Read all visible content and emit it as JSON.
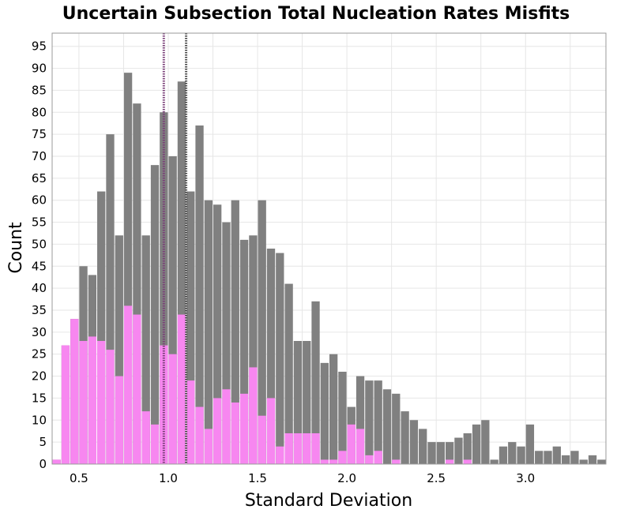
{
  "chart_data": {
    "type": "bar",
    "title": "Uncertain Subsection Total Nucleation Rates Misfits",
    "xlabel": "Standard Deviation",
    "ylabel": "Count",
    "xlim": [
      0.35,
      3.45
    ],
    "ylim": [
      0,
      98
    ],
    "bin_width": 0.05,
    "x_ticks": [
      0.5,
      1.0,
      1.5,
      2.0,
      2.5,
      3.0
    ],
    "x_tick_labels": [
      "0.5",
      "1.0",
      "1.5",
      "2.0",
      "2.5",
      "3.0"
    ],
    "y_ticks": [
      0,
      5,
      10,
      15,
      20,
      25,
      30,
      35,
      40,
      45,
      50,
      55,
      60,
      65,
      70,
      75,
      80,
      85,
      90,
      95
    ],
    "y_tick_labels": [
      "0",
      "5",
      "10",
      "15",
      "20",
      "25",
      "30",
      "35",
      "40",
      "45",
      "50",
      "55",
      "60",
      "65",
      "70",
      "75",
      "80",
      "85",
      "90",
      "95"
    ],
    "grid": true,
    "bin_centers": [
      0.375,
      0.425,
      0.475,
      0.525,
      0.575,
      0.625,
      0.675,
      0.725,
      0.775,
      0.825,
      0.875,
      0.925,
      0.975,
      1.025,
      1.075,
      1.125,
      1.175,
      1.225,
      1.275,
      1.325,
      1.375,
      1.425,
      1.475,
      1.525,
      1.575,
      1.625,
      1.675,
      1.725,
      1.775,
      1.825,
      1.875,
      1.925,
      1.975,
      2.025,
      2.075,
      2.125,
      2.175,
      2.225,
      2.275,
      2.325,
      2.375,
      2.425,
      2.475,
      2.525,
      2.575,
      2.625,
      2.675,
      2.725,
      2.775,
      2.825,
      2.875,
      2.925,
      2.975,
      3.025,
      3.075,
      3.125,
      3.175,
      3.225,
      3.275,
      3.325,
      3.375,
      3.425
    ],
    "series": [
      {
        "color": "#808080",
        "values": [
          1,
          27,
          33,
          45,
          43,
          62,
          75,
          52,
          89,
          82,
          52,
          68,
          80,
          70,
          87,
          62,
          77,
          60,
          59,
          55,
          60,
          51,
          52,
          60,
          49,
          48,
          41,
          28,
          28,
          37,
          23,
          25,
          21,
          13,
          20,
          19,
          19,
          17,
          16,
          12,
          10,
          8,
          5,
          5,
          5,
          6,
          7,
          9,
          10,
          1,
          4,
          5,
          4,
          9,
          3,
          3,
          4,
          2,
          3,
          1,
          2,
          1
        ]
      },
      {
        "color": "#f787f0",
        "values": [
          1,
          27,
          33,
          28,
          29,
          28,
          26,
          20,
          36,
          34,
          12,
          9,
          27,
          25,
          34,
          19,
          13,
          8,
          15,
          17,
          14,
          16,
          22,
          11,
          15,
          4,
          7,
          7,
          7,
          7,
          1,
          1,
          3,
          9,
          8,
          2,
          3,
          0,
          1,
          0,
          0,
          0,
          0,
          0,
          1,
          0,
          1,
          0,
          0,
          0,
          0,
          0,
          0,
          0,
          0,
          0,
          0,
          0,
          0,
          0,
          0,
          0
        ]
      }
    ],
    "reference_lines": [
      {
        "x": 0.975,
        "color": "#7a3f78",
        "style": "dotted"
      },
      {
        "x": 1.1,
        "color": "#444444",
        "style": "dotted"
      }
    ]
  }
}
